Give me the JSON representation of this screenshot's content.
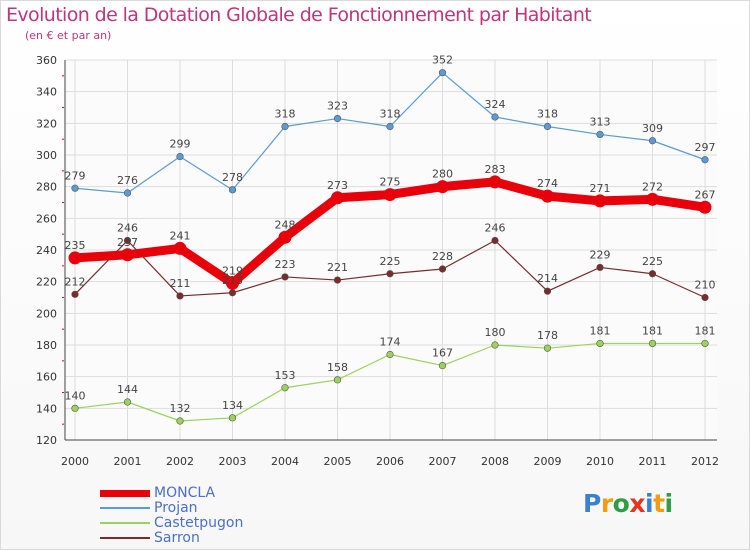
{
  "chart_data": {
    "type": "line",
    "title": "Evolution de la Dotation Globale de Fonctionnement par Habitant",
    "subtitle": "(en € et par an)",
    "categories": [
      "2000",
      "2001",
      "2002",
      "2003",
      "2004",
      "2005",
      "2006",
      "2007",
      "2008",
      "2009",
      "2010",
      "2011",
      "2012"
    ],
    "ylim": [
      120,
      360
    ],
    "yticks": [
      120,
      140,
      160,
      180,
      200,
      220,
      240,
      260,
      280,
      300,
      320,
      340,
      360
    ],
    "grid": true,
    "legend_position": "bottom-left",
    "series": [
      {
        "name": "MONCLA",
        "color": "#e8000b",
        "values": [
          235,
          237,
          241,
          219,
          248,
          273,
          275,
          280,
          283,
          274,
          271,
          272,
          267
        ]
      },
      {
        "name": "Projan",
        "color": "#5b9bd5",
        "values": [
          279,
          276,
          299,
          278,
          318,
          323,
          318,
          352,
          324,
          318,
          313,
          309,
          297
        ]
      },
      {
        "name": "Castetpugon",
        "color": "#9bd35a",
        "values": [
          140,
          144,
          132,
          134,
          153,
          158,
          174,
          167,
          180,
          178,
          181,
          181,
          181
        ]
      },
      {
        "name": "Sarron",
        "color": "#7a2b2b",
        "values": [
          212,
          246,
          211,
          213,
          223,
          221,
          225,
          228,
          246,
          214,
          229,
          225,
          210
        ]
      }
    ]
  },
  "logo": {
    "text": "Proxiti",
    "colors": [
      "#3a7fd0",
      "#f39c12",
      "#2e9e44",
      "#e8321b",
      "#3a7fd0",
      "#f39c12",
      "#2e9e44"
    ]
  }
}
